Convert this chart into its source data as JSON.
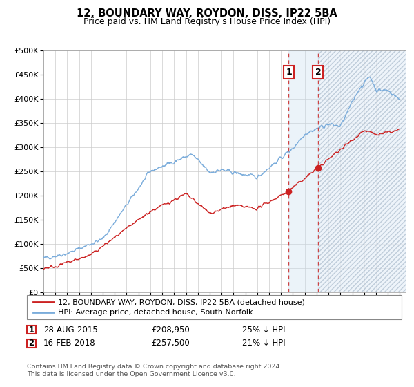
{
  "title": "12, BOUNDARY WAY, ROYDON, DISS, IP22 5BA",
  "subtitle": "Price paid vs. HM Land Registry's House Price Index (HPI)",
  "ylim": [
    0,
    500000
  ],
  "xlim_start": 1995.0,
  "xlim_end": 2025.5,
  "sale1_date": 2015.65,
  "sale1_price": 208950,
  "sale2_date": 2018.12,
  "sale2_price": 257500,
  "red_line_color": "#cc2222",
  "blue_line_color": "#7aacdb",
  "sale_marker_color": "#cc2222",
  "vline_color": "#cc4444",
  "shade_color": "#c8dff0",
  "legend_label1": "12, BOUNDARY WAY, ROYDON, DISS, IP22 5BA (detached house)",
  "legend_label2": "HPI: Average price, detached house, South Norfolk",
  "background_color": "#ffffff",
  "grid_color": "#cccccc",
  "footer": "Contains HM Land Registry data © Crown copyright and database right 2024.\nThis data is licensed under the Open Government Licence v3.0."
}
